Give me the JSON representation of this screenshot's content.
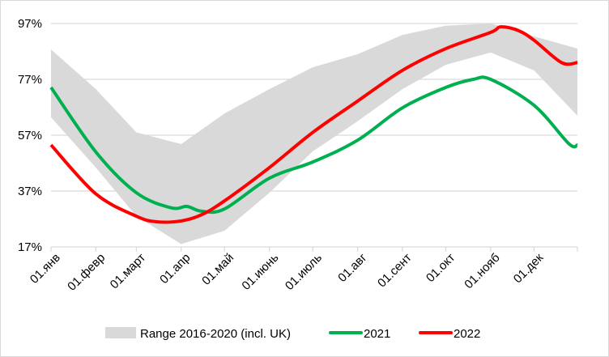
{
  "chart_data": {
    "type": "line",
    "title": "",
    "xlabel": "",
    "ylabel": "",
    "ylim": [
      17,
      97
    ],
    "yticks": [
      "97%",
      "77%",
      "57%",
      "37%",
      "17%"
    ],
    "ytick_values": [
      97,
      77,
      57,
      37,
      17
    ],
    "xticks": [
      "01.янв",
      "01.февр",
      "01.март",
      "01.апр",
      "01.май",
      "01.июнь",
      "01.июль",
      "01.авг",
      "01.сент",
      "01.окт",
      "01.нояб",
      "01.дек"
    ],
    "grid": "horizontal",
    "legend_position": "bottom",
    "range": {
      "name": "Range 2016-2020 (incl. UK)",
      "color": "#d9d9d9",
      "x": [
        "01-01",
        "02-01",
        "03-01",
        "04-01",
        "05-01",
        "06-01",
        "07-01",
        "08-01",
        "09-01",
        "10-01",
        "11-01",
        "12-01",
        "12-31"
      ],
      "upper": [
        87.7,
        73.5,
        58,
        53.8,
        64.8,
        73.5,
        81.3,
        86,
        92.9,
        96.2,
        97,
        92.4,
        88
      ],
      "lower": [
        63.4,
        45.4,
        28,
        18,
        22.8,
        36.4,
        51.2,
        62,
        73.5,
        82.2,
        86.6,
        80.2,
        64
      ]
    },
    "series": [
      {
        "name": "2021",
        "color": "#00b050",
        "x": [
          "01-01",
          "02-01",
          "03-01",
          "03-25",
          "04-05",
          "04-15",
          "05-01",
          "06-01",
          "07-01",
          "08-01",
          "09-01",
          "10-01",
          "10-20",
          "11-01",
          "12-01",
          "12-25",
          "12-31"
        ],
        "values": [
          74.1,
          51,
          36.4,
          31,
          31.5,
          29.8,
          30.6,
          41.6,
          47.4,
          55.2,
          66.8,
          74.1,
          77,
          77,
          67.7,
          54,
          53.5
        ]
      },
      {
        "name": "2022",
        "color": "#ff0000",
        "x": [
          "01-01",
          "02-01",
          "03-01",
          "03-15",
          "04-01",
          "04-15",
          "05-01",
          "06-01",
          "07-01",
          "08-01",
          "09-01",
          "10-01",
          "11-01",
          "11-08",
          "11-20",
          "12-01",
          "12-20",
          "12-31"
        ],
        "values": [
          53.5,
          36,
          28,
          26,
          26.3,
          28.5,
          33.5,
          45.4,
          58,
          69.2,
          80.2,
          88,
          93.8,
          95.8,
          94.5,
          91,
          83,
          83
        ]
      }
    ]
  }
}
